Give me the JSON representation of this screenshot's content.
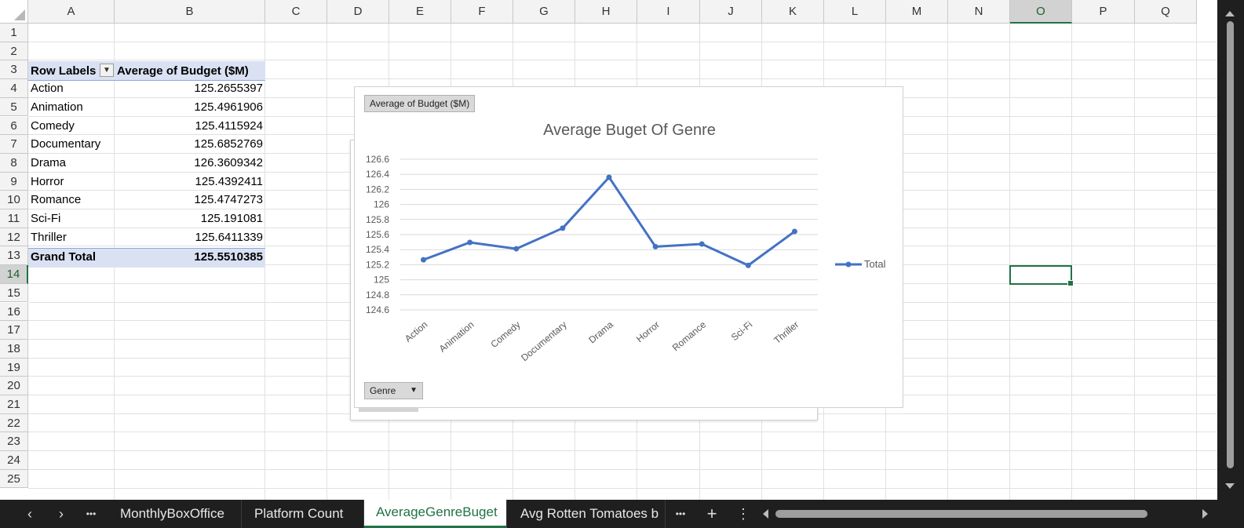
{
  "columns": [
    "A",
    "B",
    "C",
    "D",
    "E",
    "F",
    "G",
    "H",
    "I",
    "J",
    "K",
    "L",
    "M",
    "N",
    "O",
    "P",
    "Q"
  ],
  "rows": [
    "1",
    "2",
    "3",
    "4",
    "5",
    "6",
    "7",
    "8",
    "9",
    "10",
    "11",
    "12",
    "13",
    "14",
    "15",
    "16",
    "17",
    "18",
    "19",
    "20",
    "21",
    "22",
    "23",
    "24",
    "25"
  ],
  "selected_cell": "O14",
  "pivot": {
    "header_label": "Row Labels",
    "header_value": "Average of Budget ($M)",
    "filter_icon": "filter-icon",
    "rows": [
      {
        "label": "Action",
        "value": "125.2655397"
      },
      {
        "label": "Animation",
        "value": "125.4961906"
      },
      {
        "label": "Comedy",
        "value": "125.4115924"
      },
      {
        "label": "Documentary",
        "value": "125.6852769"
      },
      {
        "label": "Drama",
        "value": "126.3609342"
      },
      {
        "label": "Horror",
        "value": "125.4392411"
      },
      {
        "label": "Romance",
        "value": "125.4747273"
      },
      {
        "label": "Sci-Fi",
        "value": "125.191081"
      },
      {
        "label": "Thriller",
        "value": "125.6411339"
      }
    ],
    "total_label": "Grand Total",
    "total_value": "125.5510385"
  },
  "chart_field_value": "Average of Budget ($M)",
  "chart_field_axis": "Genre",
  "chart_data": {
    "type": "line",
    "title": "Average Buget Of Genre",
    "categories": [
      "Action",
      "Animation",
      "Comedy",
      "Documentary",
      "Drama",
      "Horror",
      "Romance",
      "Sci-Fi",
      "Thriller"
    ],
    "series": [
      {
        "name": "Total",
        "values": [
          125.2655397,
          125.4961906,
          125.4115924,
          125.6852769,
          126.3609342,
          125.4392411,
          125.4747273,
          125.191081,
          125.6411339
        ]
      }
    ],
    "ylim": [
      124.6,
      126.6
    ],
    "yticks": [
      "126.6",
      "126.4",
      "126.2",
      "126",
      "125.8",
      "125.6",
      "125.4",
      "125.2",
      "125",
      "124.8",
      "124.6"
    ],
    "grid": true,
    "legend_position": "right",
    "color": "#4472c4"
  },
  "tabs": [
    "MonthlyBoxOffice",
    "Platform Count",
    "AverageGenreBuget",
    "Avg Rotten Tomatoes b"
  ],
  "active_tab": "AverageGenreBuget",
  "tab_controls": {
    "prev": "‹",
    "next": "›",
    "more": "•••",
    "more_right": "•••",
    "add": "+",
    "options": "⋮"
  }
}
